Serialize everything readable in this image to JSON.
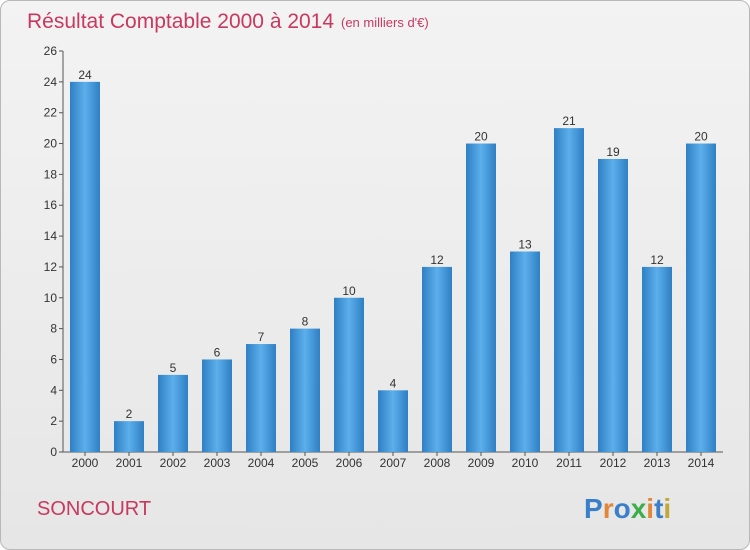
{
  "chart_data": {
    "type": "bar",
    "title": "Résultat Comptable 2000 à 2014",
    "subtitle": "(en milliers d'€)",
    "categories": [
      "2000",
      "2001",
      "2002",
      "2003",
      "2004",
      "2005",
      "2006",
      "2007",
      "2008",
      "2009",
      "2010",
      "2011",
      "2012",
      "2013",
      "2014"
    ],
    "values": [
      24,
      2,
      5,
      6,
      7,
      8,
      10,
      4,
      12,
      20,
      13,
      21,
      19,
      12,
      20
    ],
    "ylim": [
      0,
      26
    ],
    "yticks": [
      0,
      2,
      4,
      6,
      8,
      10,
      12,
      14,
      16,
      18,
      20,
      22,
      24,
      26
    ],
    "grid": false,
    "bar_color": "#3d8fd6"
  },
  "footer": {
    "location": "SONCOURT",
    "logo_letters": [
      "P",
      "r",
      "o",
      "x",
      "i",
      "t",
      "i"
    ],
    "logo_colors": [
      "#3b7ec9",
      "#e2873a",
      "#3b7ec9",
      "#3cae49",
      "#e2873a",
      "#3b7ec9",
      "#c4a73a"
    ]
  }
}
